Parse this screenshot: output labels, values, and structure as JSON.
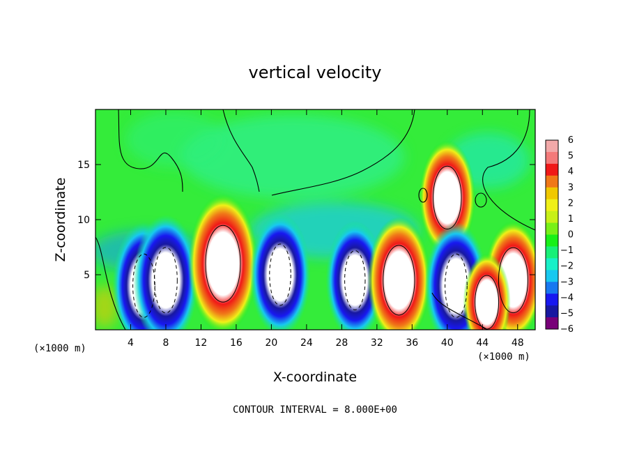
{
  "chart_data": {
    "type": "heatmap",
    "title": "vertical velocity",
    "xlabel": "X-coordinate",
    "ylabel": "Z-coordinate",
    "x_unit_label": "(×1000 m)",
    "x_ticks": [
      4,
      8,
      12,
      16,
      20,
      24,
      28,
      32,
      36,
      40,
      44,
      48
    ],
    "y_ticks": [
      5,
      10,
      15
    ],
    "xlim": [
      0,
      50
    ],
    "ylim": [
      0,
      20
    ],
    "colorbar": {
      "ticks": [
        6,
        5,
        4,
        3,
        2,
        1,
        0,
        -1,
        -2,
        -3,
        -4,
        -5,
        -6
      ],
      "colors": [
        "#f2a9a9",
        "#f47a7a",
        "#f01818",
        "#f07818",
        "#f0c800",
        "#f0f018",
        "#c8f018",
        "#78f018",
        "#18f018",
        "#18f078",
        "#18f0c8",
        "#18c8f0",
        "#1878f0",
        "#1818f0",
        "#1818a0",
        "#780078"
      ]
    },
    "features": [
      {
        "x": 5.5,
        "z": 4.0,
        "w": -8.5
      },
      {
        "x": 8.0,
        "z": 4.5,
        "w": -9.0
      },
      {
        "x": 14.5,
        "z": 6.0,
        "w": 10.0
      },
      {
        "x": 21.0,
        "z": 5.0,
        "w": -8.0
      },
      {
        "x": 29.5,
        "z": 4.5,
        "w": -7.5
      },
      {
        "x": 34.5,
        "z": 4.5,
        "w": 8.5
      },
      {
        "x": 40.0,
        "z": 12.0,
        "w": 7.0
      },
      {
        "x": 41.0,
        "z": 4.0,
        "w": -8.5
      },
      {
        "x": 47.5,
        "z": 4.5,
        "w": 7.5
      },
      {
        "x": 44.5,
        "z": 2.5,
        "w": 5.0
      }
    ],
    "contour_interval_text": "CONTOUR INTERVAL = 8.000E+00"
  }
}
